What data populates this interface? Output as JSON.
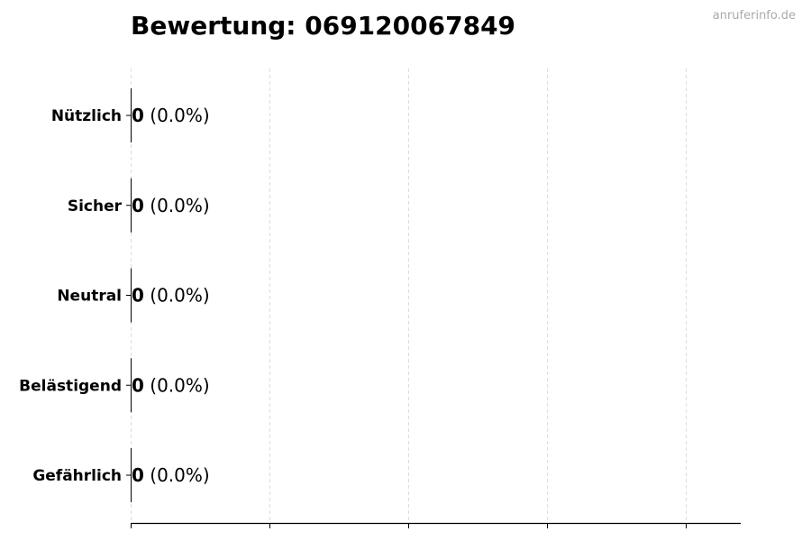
{
  "chart_data": {
    "type": "bar",
    "orientation": "horizontal",
    "title": "Bewertung: 069120067849",
    "categories": [
      "Nützlich",
      "Sicher",
      "Neutral",
      "Belästigend",
      "Gefährlich"
    ],
    "values": [
      0,
      0,
      0,
      0,
      0
    ],
    "value_labels": [
      "0",
      "0",
      "0",
      "0",
      "0"
    ],
    "percent_labels": [
      "(0.0%)",
      "(0.0%)",
      "(0.0%)",
      "(0.0%)",
      "(0.0%)"
    ],
    "xlabel": "",
    "ylabel": "",
    "grid": "vertical dashed",
    "x_tick_labels": "none",
    "bar_color": "#000000",
    "grid_color": "#dddddd"
  },
  "watermark": "anruferinfo.de"
}
